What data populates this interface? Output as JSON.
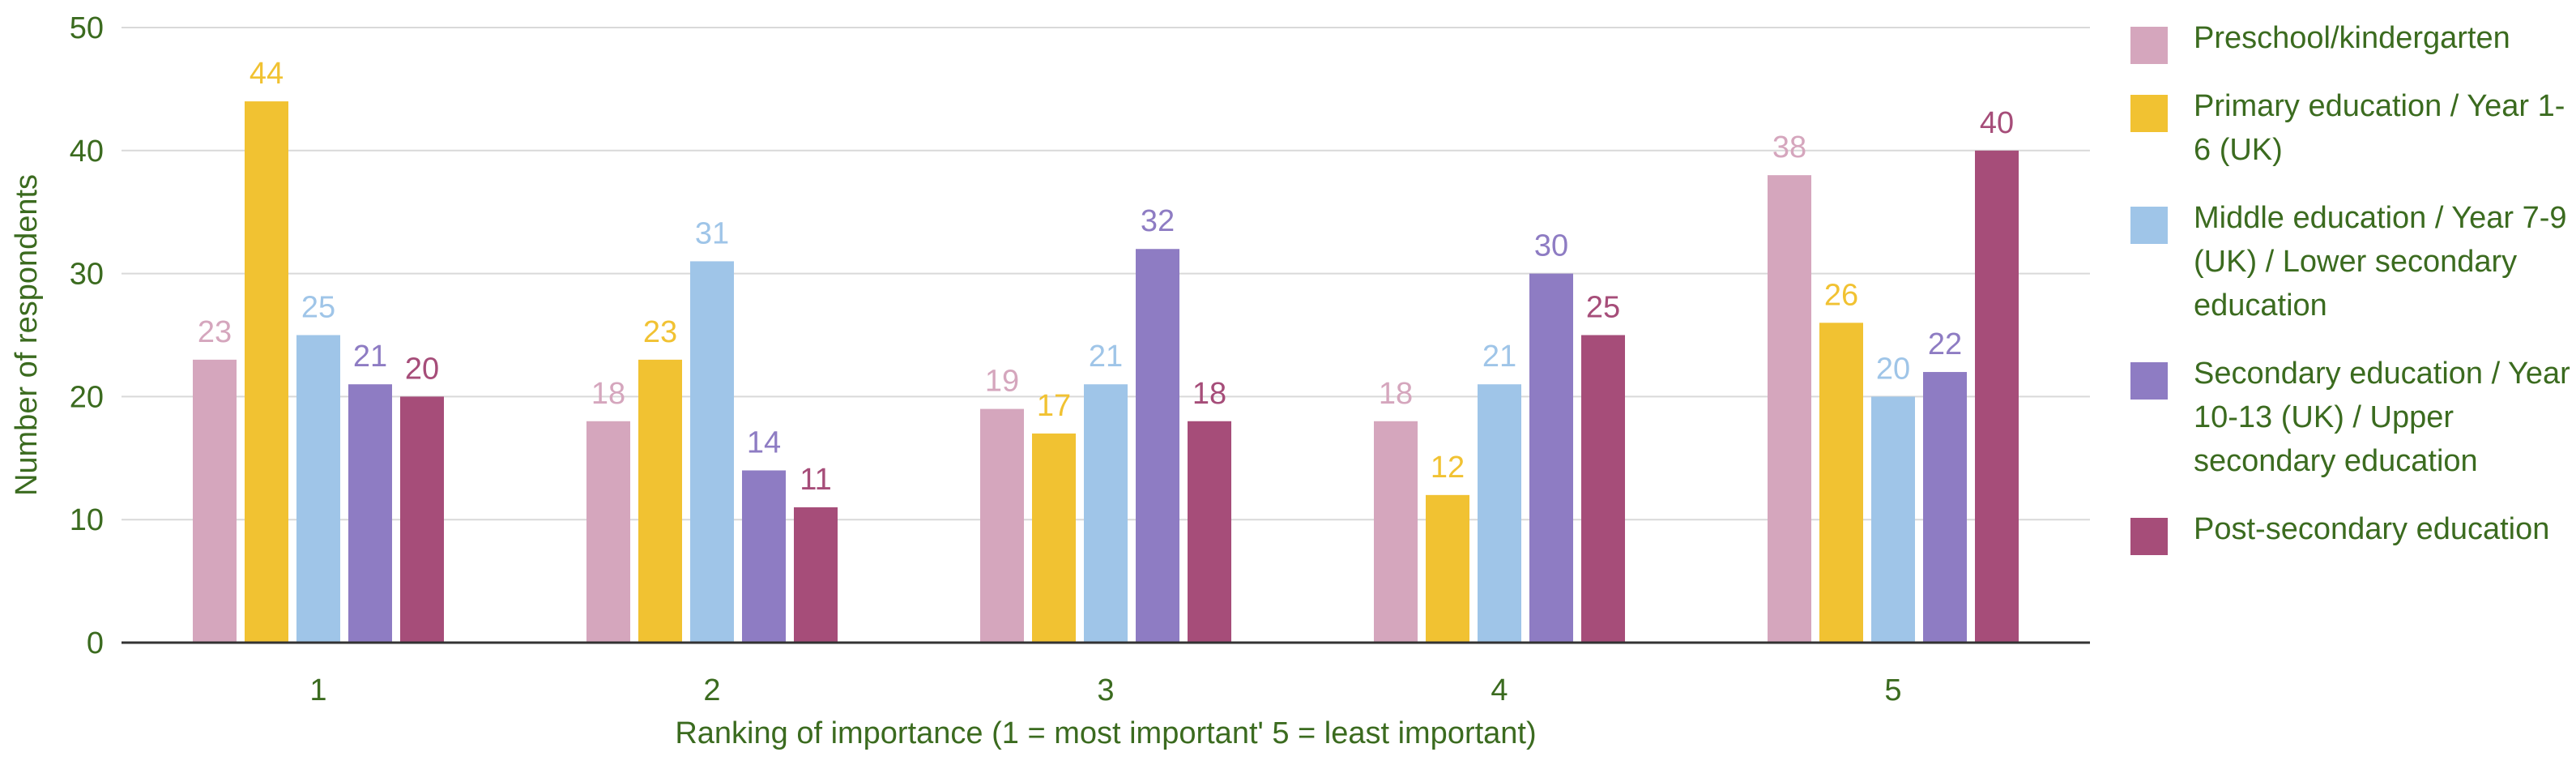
{
  "chart_data": {
    "type": "bar",
    "categories": [
      "1",
      "2",
      "3",
      "4",
      "5"
    ],
    "series": [
      {
        "name": "Preschool/kindergarten",
        "color": "#d5a6bd",
        "values": [
          23,
          18,
          19,
          18,
          38
        ]
      },
      {
        "name": "Primary education / Year 1-6 (UK)",
        "color": "#f1c232",
        "values": [
          44,
          23,
          17,
          12,
          26
        ]
      },
      {
        "name": "Middle education / Year 7-9 (UK) / Lower secondary education",
        "color": "#9fc5e8",
        "values": [
          25,
          31,
          21,
          21,
          20
        ]
      },
      {
        "name": "Secondary education / Year 10-13 (UK) / Upper secondary education",
        "color": "#8e7cc3",
        "values": [
          21,
          14,
          32,
          30,
          22
        ]
      },
      {
        "name": "Post-secondary education",
        "color": "#a64d79",
        "values": [
          20,
          11,
          18,
          25,
          40
        ]
      }
    ],
    "xlabel": "Ranking of importance (1 = most important' 5 = least important)",
    "ylabel": "Number of respondents",
    "ylim": [
      0,
      50
    ],
    "yticks": [
      0,
      10,
      20,
      30,
      40,
      50
    ],
    "grid": true,
    "legend": "right",
    "axis_text_color": "#3b6b1f"
  }
}
